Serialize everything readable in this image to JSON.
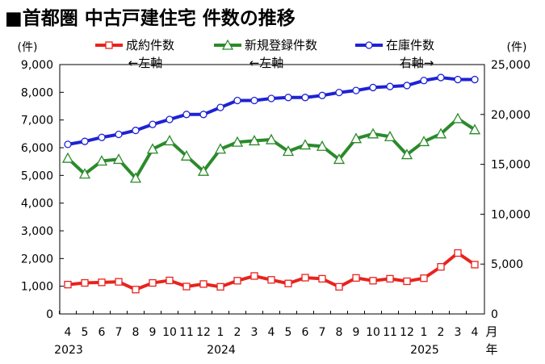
{
  "title": "■首都圏 中古戸建住宅 件数の推移",
  "units": {
    "left": "(件)",
    "right": "(件)",
    "month": "月",
    "year": "年"
  },
  "legend": [
    {
      "name": "成約件数",
      "note": "←左軸",
      "color": "#e8231d",
      "marker": "square"
    },
    {
      "name": "新規登録件数",
      "note": "←左軸",
      "color": "#2b8a2b",
      "marker": "triangle"
    },
    {
      "name": "在庫件数",
      "note": "右軸→",
      "color": "#1d22d4",
      "marker": "circle"
    }
  ],
  "chart_data": {
    "type": "line",
    "x": [
      "4",
      "5",
      "6",
      "7",
      "8",
      "9",
      "10",
      "11",
      "12",
      "1",
      "2",
      "3",
      "4",
      "5",
      "6",
      "7",
      "8",
      "9",
      "10",
      "11",
      "12",
      "1",
      "2",
      "3",
      "4"
    ],
    "year_labels": [
      {
        "label": "2023",
        "index": 0
      },
      {
        "label": "2024",
        "index": 9
      },
      {
        "label": "2025",
        "index": 21
      }
    ],
    "left_axis": {
      "ylim": [
        0,
        9000
      ],
      "ticks": [
        "0",
        "1,000",
        "2,000",
        "3,000",
        "4,000",
        "5,000",
        "6,000",
        "7,000",
        "8,000",
        "9,000"
      ]
    },
    "right_axis": {
      "ylim": [
        0,
        25000
      ],
      "ticks": [
        "0",
        "5,000",
        "10,000",
        "15,000",
        "20,000",
        "25,000"
      ]
    },
    "series": [
      {
        "name": "成約件数",
        "axis": "left",
        "values": [
          1060,
          1120,
          1140,
          1160,
          880,
          1120,
          1210,
          990,
          1080,
          980,
          1200,
          1370,
          1230,
          1100,
          1310,
          1270,
          980,
          1300,
          1200,
          1270,
          1180,
          1290,
          1700,
          2200,
          1780
        ]
      },
      {
        "name": "新規登録件数",
        "axis": "left",
        "values": [
          5620,
          5050,
          5520,
          5580,
          4900,
          5950,
          6250,
          5700,
          5150,
          5950,
          6200,
          6250,
          6290,
          5870,
          6100,
          6050,
          5580,
          6330,
          6500,
          6400,
          5750,
          6220,
          6500,
          7050,
          6650
        ]
      },
      {
        "name": "在庫件数",
        "axis": "right",
        "values": [
          17000,
          17300,
          17700,
          18000,
          18400,
          19000,
          19500,
          20000,
          20000,
          20700,
          21400,
          21400,
          21600,
          21700,
          21700,
          21900,
          22200,
          22400,
          22700,
          22800,
          22900,
          23400,
          23700,
          23500,
          23500
        ]
      }
    ]
  }
}
